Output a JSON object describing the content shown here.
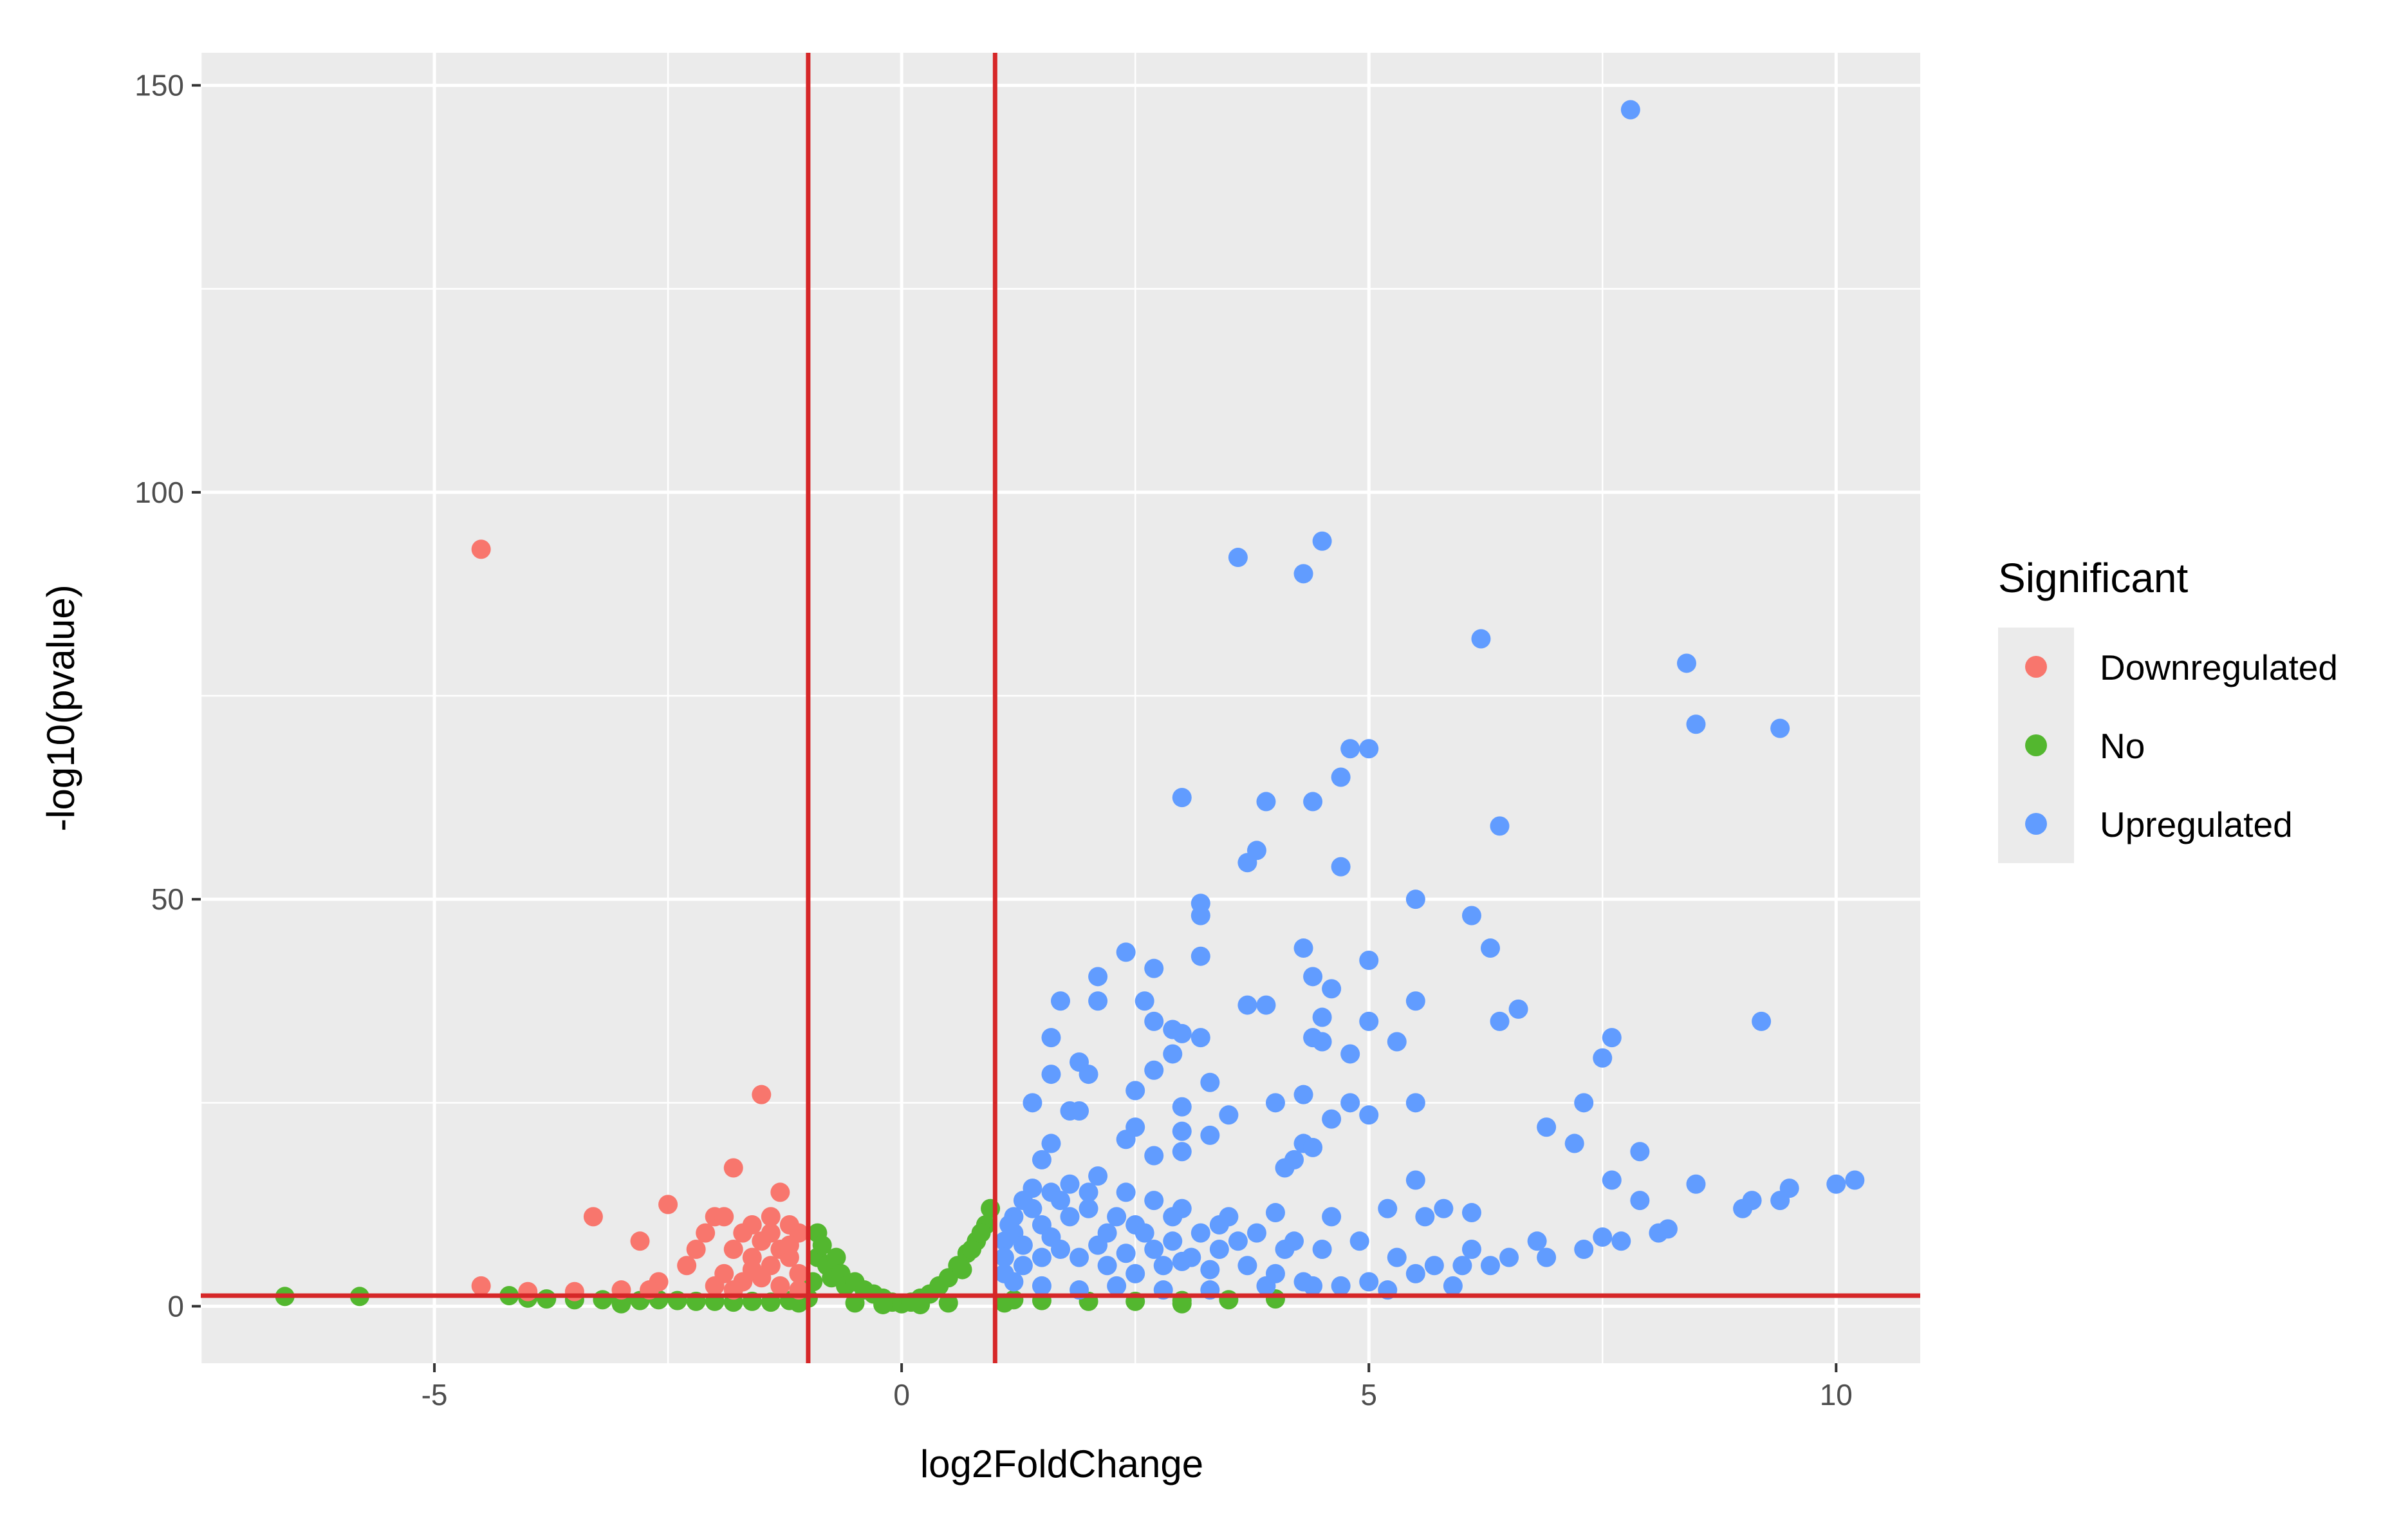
{
  "chart_data": {
    "type": "scatter",
    "title": "",
    "xlabel": "log2FoldChange",
    "ylabel": "-log10(pvalue)",
    "xlim": [
      -7.5,
      10.9
    ],
    "ylim": [
      -7,
      154
    ],
    "x_ticks": [
      {
        "value": -5,
        "label": "-5"
      },
      {
        "value": 0,
        "label": "0"
      },
      {
        "value": 5,
        "label": "5"
      },
      {
        "value": 10,
        "label": "10"
      }
    ],
    "y_ticks": [
      {
        "value": 0,
        "label": "0"
      },
      {
        "value": 50,
        "label": "50"
      },
      {
        "value": 100,
        "label": "100"
      },
      {
        "value": 150,
        "label": "150"
      }
    ],
    "grid": true,
    "background_color": "#ebebeb",
    "threshold_lines": {
      "color": "#d62728",
      "vertical_x": [
        -1,
        1
      ],
      "horizontal_y": [
        1.3
      ]
    },
    "legend": {
      "title": "Significant",
      "position": "right"
    },
    "series": [
      {
        "name": "Downregulated",
        "color": "#f8766d",
        "points": [
          [
            -4.5,
            93
          ],
          [
            -1.5,
            26
          ],
          [
            -1.8,
            17
          ],
          [
            -1.3,
            14
          ],
          [
            -3.3,
            11
          ],
          [
            -2.5,
            12.5
          ],
          [
            -2.8,
            8
          ],
          [
            -2.0,
            11
          ],
          [
            -1.9,
            11
          ],
          [
            -2.1,
            9
          ],
          [
            -2.2,
            7
          ],
          [
            -1.7,
            9
          ],
          [
            -1.6,
            10
          ],
          [
            -1.4,
            11
          ],
          [
            -1.2,
            10
          ],
          [
            -1.1,
            9
          ],
          [
            -1.5,
            8
          ],
          [
            -1.8,
            7
          ],
          [
            -1.3,
            7
          ],
          [
            -1.6,
            6
          ],
          [
            -2.3,
            5
          ],
          [
            -2.6,
            3
          ],
          [
            -1.9,
            4
          ],
          [
            -1.4,
            5
          ],
          [
            -1.2,
            6
          ],
          [
            -1.1,
            4
          ],
          [
            -1.7,
            3
          ],
          [
            -1.5,
            3.5
          ],
          [
            -2.0,
            2.5
          ],
          [
            -1.3,
            2.5
          ],
          [
            -1.1,
            2
          ],
          [
            -4.5,
            2.5
          ],
          [
            -3.0,
            2
          ],
          [
            -3.5,
            1.8
          ],
          [
            -4.0,
            1.8
          ],
          [
            -2.7,
            2
          ],
          [
            -1.8,
            2
          ],
          [
            -1.6,
            4.5
          ],
          [
            -1.2,
            7.5
          ],
          [
            -1.4,
            9
          ]
        ]
      },
      {
        "name": "No",
        "color": "#53b72f",
        "points": [
          [
            -6.6,
            1.2
          ],
          [
            -5.8,
            1.2
          ],
          [
            -4.2,
            1.3
          ],
          [
            -4.0,
            1.0
          ],
          [
            -3.8,
            0.9
          ],
          [
            -3.5,
            0.8
          ],
          [
            -3.2,
            0.8
          ],
          [
            -3.0,
            0.9
          ],
          [
            -2.8,
            0.7
          ],
          [
            -2.6,
            0.8
          ],
          [
            -2.4,
            0.7
          ],
          [
            -2.2,
            0.6
          ],
          [
            -2.0,
            0.6
          ],
          [
            -1.8,
            0.5
          ],
          [
            -1.6,
            0.6
          ],
          [
            -1.4,
            0.5
          ],
          [
            -1.2,
            0.7
          ],
          [
            -1.0,
            1.0
          ],
          [
            -0.95,
            3.0
          ],
          [
            -0.9,
            6.0
          ],
          [
            -0.9,
            9.0
          ],
          [
            -0.85,
            7.5
          ],
          [
            -0.8,
            5.0
          ],
          [
            -0.75,
            3.5
          ],
          [
            -0.7,
            6.0
          ],
          [
            -0.65,
            4.0
          ],
          [
            -0.6,
            2.5
          ],
          [
            -0.5,
            3.0
          ],
          [
            -0.4,
            2.0
          ],
          [
            -0.3,
            1.5
          ],
          [
            -0.2,
            1.0
          ],
          [
            -0.1,
            0.5
          ],
          [
            0.0,
            0.3
          ],
          [
            0.1,
            0.5
          ],
          [
            0.2,
            1.0
          ],
          [
            0.3,
            1.5
          ],
          [
            0.4,
            2.5
          ],
          [
            0.5,
            3.5
          ],
          [
            0.6,
            5.0
          ],
          [
            0.7,
            6.5
          ],
          [
            0.8,
            8.0
          ],
          [
            0.9,
            10.0
          ],
          [
            0.95,
            12.0
          ],
          [
            0.85,
            9.0
          ],
          [
            0.75,
            7.0
          ],
          [
            0.65,
            4.5
          ],
          [
            1.2,
            0.8
          ],
          [
            1.5,
            0.7
          ],
          [
            2.0,
            0.6
          ],
          [
            2.5,
            0.6
          ],
          [
            3.0,
            0.7
          ],
          [
            3.5,
            0.8
          ],
          [
            4.0,
            0.9
          ],
          [
            -0.5,
            0.4
          ],
          [
            0.5,
            0.4
          ],
          [
            -1.1,
            0.4
          ],
          [
            1.1,
            0.4
          ],
          [
            -0.2,
            0.2
          ],
          [
            0.2,
            0.2
          ],
          [
            -3.0,
            0.3
          ],
          [
            3.0,
            0.3
          ]
        ]
      },
      {
        "name": "Upregulated",
        "color": "#619cff",
        "points": [
          [
            7.8,
            147
          ],
          [
            4.5,
            94
          ],
          [
            3.6,
            92
          ],
          [
            4.3,
            90
          ],
          [
            6.2,
            82
          ],
          [
            8.4,
            79
          ],
          [
            8.5,
            71.5
          ],
          [
            9.4,
            71
          ],
          [
            4.8,
            68.5
          ],
          [
            5.0,
            68.5
          ],
          [
            4.7,
            65
          ],
          [
            3.0,
            62.5
          ],
          [
            3.9,
            62
          ],
          [
            4.4,
            62
          ],
          [
            6.4,
            59
          ],
          [
            3.8,
            56
          ],
          [
            3.7,
            54.5
          ],
          [
            4.7,
            54
          ],
          [
            3.2,
            49.5
          ],
          [
            5.5,
            50
          ],
          [
            3.2,
            48
          ],
          [
            6.1,
            48
          ],
          [
            2.4,
            43.5
          ],
          [
            3.2,
            43
          ],
          [
            4.3,
            44
          ],
          [
            6.3,
            44
          ],
          [
            5.0,
            42.5
          ],
          [
            2.7,
            41.5
          ],
          [
            2.1,
            40.5
          ],
          [
            4.4,
            40.5
          ],
          [
            4.6,
            39
          ],
          [
            1.7,
            37.5
          ],
          [
            2.1,
            37.5
          ],
          [
            2.6,
            37.5
          ],
          [
            3.7,
            37
          ],
          [
            3.9,
            37
          ],
          [
            5.5,
            37.5
          ],
          [
            6.6,
            36.5
          ],
          [
            4.5,
            35.5
          ],
          [
            5.0,
            35
          ],
          [
            2.7,
            35
          ],
          [
            2.9,
            34
          ],
          [
            6.4,
            35
          ],
          [
            9.2,
            35
          ],
          [
            1.6,
            33
          ],
          [
            3.0,
            33.5
          ],
          [
            3.2,
            33
          ],
          [
            4.4,
            33
          ],
          [
            4.5,
            32.5
          ],
          [
            5.3,
            32.5
          ],
          [
            7.6,
            33
          ],
          [
            2.9,
            31
          ],
          [
            4.8,
            31
          ],
          [
            7.5,
            30.5
          ],
          [
            1.9,
            30
          ],
          [
            2.0,
            28.5
          ],
          [
            1.6,
            28.5
          ],
          [
            2.7,
            29
          ],
          [
            3.3,
            27.5
          ],
          [
            2.5,
            26.5
          ],
          [
            1.4,
            25
          ],
          [
            4.0,
            25
          ],
          [
            4.3,
            26
          ],
          [
            4.8,
            25
          ],
          [
            5.5,
            25
          ],
          [
            7.3,
            25
          ],
          [
            1.8,
            24
          ],
          [
            1.9,
            24
          ],
          [
            3.0,
            24.5
          ],
          [
            3.5,
            23.5
          ],
          [
            4.6,
            23
          ],
          [
            5.0,
            23.5
          ],
          [
            2.5,
            22
          ],
          [
            6.9,
            22
          ],
          [
            3.0,
            21.5
          ],
          [
            3.3,
            21
          ],
          [
            7.2,
            20
          ],
          [
            2.4,
            20.5
          ],
          [
            1.6,
            20
          ],
          [
            4.3,
            20
          ],
          [
            4.4,
            19.5
          ],
          [
            3.0,
            19
          ],
          [
            7.9,
            19
          ],
          [
            2.7,
            18.5
          ],
          [
            1.5,
            18
          ],
          [
            4.2,
            18
          ],
          [
            4.1,
            17
          ],
          [
            5.5,
            15.5
          ],
          [
            7.6,
            15.5
          ],
          [
            8.5,
            15
          ],
          [
            10.0,
            15
          ],
          [
            10.2,
            15.5
          ],
          [
            9.5,
            14.5
          ],
          [
            9.4,
            13
          ],
          [
            9.1,
            13
          ],
          [
            9.0,
            12
          ],
          [
            7.9,
            13
          ],
          [
            5.8,
            12
          ],
          [
            6.1,
            11.5
          ],
          [
            5.2,
            12
          ],
          [
            5.6,
            11
          ],
          [
            4.6,
            11
          ],
          [
            4.0,
            11.5
          ],
          [
            3.5,
            11
          ],
          [
            2.9,
            11
          ],
          [
            2.5,
            10
          ],
          [
            2.2,
            9
          ],
          [
            2.0,
            12
          ],
          [
            1.8,
            11
          ],
          [
            1.5,
            10
          ],
          [
            1.2,
            9
          ],
          [
            1.1,
            8
          ],
          [
            1.3,
            13
          ],
          [
            1.6,
            14
          ],
          [
            1.8,
            15
          ],
          [
            2.1,
            16
          ],
          [
            2.4,
            14
          ],
          [
            2.7,
            13
          ],
          [
            3.0,
            12
          ],
          [
            3.4,
            10
          ],
          [
            3.8,
            9
          ],
          [
            4.2,
            8
          ],
          [
            4.5,
            7
          ],
          [
            4.9,
            8
          ],
          [
            5.3,
            6
          ],
          [
            5.7,
            5
          ],
          [
            6.1,
            7
          ],
          [
            6.5,
            6
          ],
          [
            6.9,
            6
          ],
          [
            7.3,
            7
          ],
          [
            7.7,
            8
          ],
          [
            8.1,
            9
          ],
          [
            8.2,
            9.5
          ],
          [
            7.5,
            8.5
          ],
          [
            6.8,
            8
          ],
          [
            6.0,
            5
          ],
          [
            5.5,
            4
          ],
          [
            5.0,
            3
          ],
          [
            4.4,
            2.5
          ],
          [
            3.9,
            2.5
          ],
          [
            3.3,
            2
          ],
          [
            2.8,
            2
          ],
          [
            2.3,
            2.5
          ],
          [
            1.9,
            2
          ],
          [
            1.5,
            2.5
          ],
          [
            1.2,
            3
          ],
          [
            1.1,
            4
          ],
          [
            1.3,
            5
          ],
          [
            1.5,
            6
          ],
          [
            1.7,
            7
          ],
          [
            1.9,
            6
          ],
          [
            2.2,
            5
          ],
          [
            2.5,
            4
          ],
          [
            2.8,
            5
          ],
          [
            3.1,
            6
          ],
          [
            3.4,
            7
          ],
          [
            3.7,
            5
          ],
          [
            4.0,
            4
          ],
          [
            4.3,
            3
          ],
          [
            4.7,
            2.5
          ],
          [
            5.2,
            2
          ],
          [
            5.9,
            2.5
          ],
          [
            6.3,
            5
          ],
          [
            1.2,
            11
          ],
          [
            1.4,
            12
          ],
          [
            1.7,
            13
          ],
          [
            2.0,
            14
          ],
          [
            2.3,
            11
          ],
          [
            2.6,
            9
          ],
          [
            2.9,
            8
          ],
          [
            3.2,
            9
          ],
          [
            3.6,
            8
          ],
          [
            4.1,
            7
          ],
          [
            1.1,
            6
          ],
          [
            1.3,
            7.5
          ],
          [
            1.6,
            8.5
          ],
          [
            2.1,
            7.5
          ],
          [
            2.4,
            6.5
          ],
          [
            2.7,
            7
          ],
          [
            3.0,
            5.5
          ],
          [
            3.3,
            4.5
          ],
          [
            1.15,
            10
          ],
          [
            1.4,
            14.5
          ]
        ]
      }
    ]
  }
}
